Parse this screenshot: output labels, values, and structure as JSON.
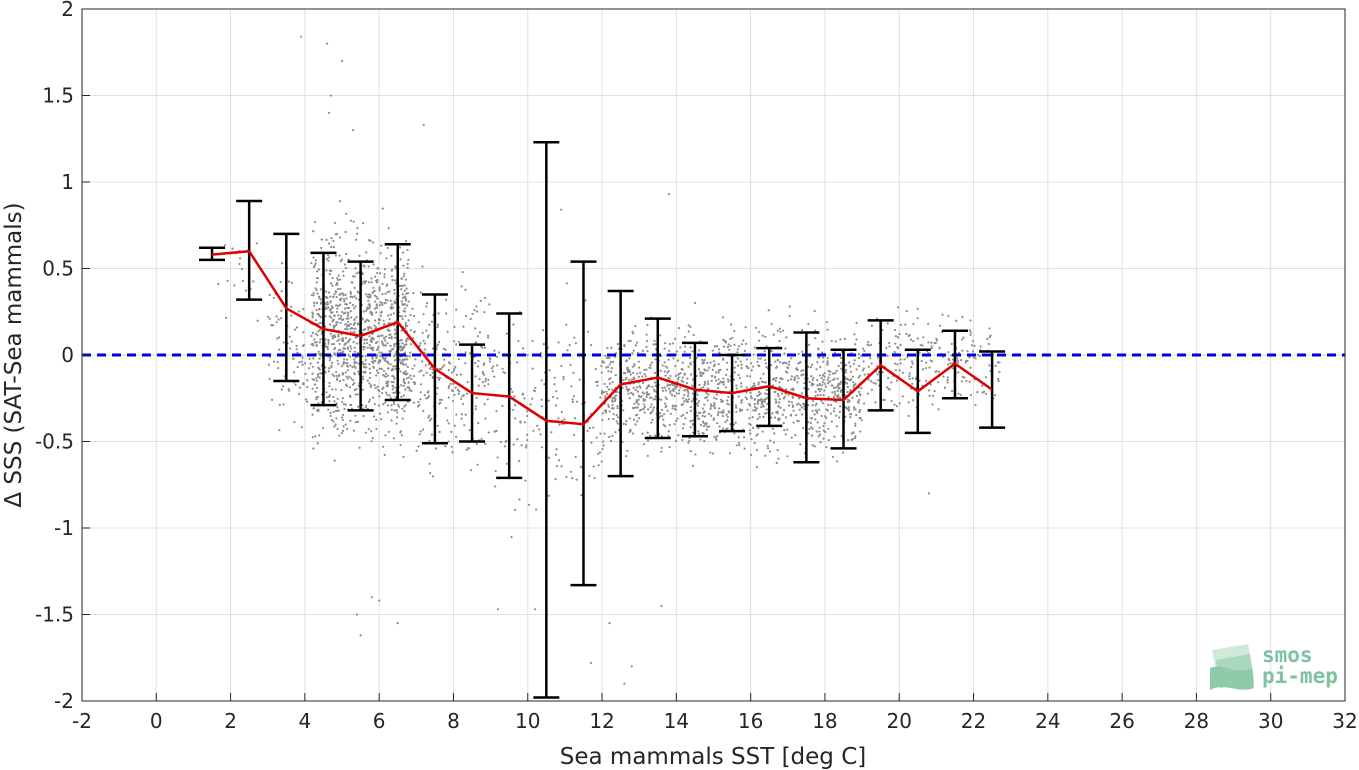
{
  "chart_data": {
    "type": "scatter",
    "xlabel": "Sea mammals SST [deg C]",
    "ylabel": "Δ SSS (SAT-Sea mammals)",
    "xlim": [
      -2,
      32
    ],
    "ylim": [
      -2,
      2
    ],
    "xticks": [
      -2,
      0,
      2,
      4,
      6,
      8,
      10,
      12,
      14,
      16,
      18,
      20,
      22,
      24,
      26,
      28,
      30,
      32
    ],
    "yticks": [
      -2,
      -1.5,
      -1,
      -0.5,
      0,
      0.5,
      1,
      1.5,
      2
    ],
    "xtick_labels": [
      "-2",
      "0",
      "2",
      "4",
      "6",
      "8",
      "10",
      "12",
      "14",
      "16",
      "18",
      "20",
      "22",
      "24",
      "26",
      "28",
      "30",
      "32"
    ],
    "ytick_labels": [
      "-2",
      "-1.5",
      "-1",
      "-0.5",
      "0",
      "0.5",
      "1",
      "1.5",
      "2"
    ],
    "grid": true,
    "reference_line": {
      "y": 0,
      "color": "#0000e0",
      "style": "dashed"
    },
    "mean_series": {
      "color": "#e00000",
      "x": [
        1.5,
        2.5,
        3.5,
        4.5,
        5.5,
        6.5,
        7.5,
        8.5,
        9.5,
        10.5,
        11.5,
        12.5,
        13.5,
        14.5,
        15.5,
        16.5,
        17.5,
        18.5,
        19.5,
        20.5,
        21.5,
        22.5
      ],
      "y": [
        0.58,
        0.6,
        0.27,
        0.15,
        0.11,
        0.19,
        -0.08,
        -0.22,
        -0.24,
        -0.38,
        -0.4,
        -0.17,
        -0.13,
        -0.2,
        -0.22,
        -0.18,
        -0.25,
        -0.26,
        -0.06,
        -0.21,
        -0.05,
        -0.2
      ]
    },
    "error_bars": {
      "color": "#000000",
      "lower": [
        0.55,
        0.32,
        -0.15,
        -0.29,
        -0.32,
        -0.26,
        -0.51,
        -0.5,
        -0.71,
        -1.98,
        -1.33,
        -0.7,
        -0.48,
        -0.47,
        -0.44,
        -0.41,
        -0.62,
        -0.54,
        -0.32,
        -0.45,
        -0.25,
        -0.42
      ],
      "upper": [
        0.62,
        0.89,
        0.7,
        0.59,
        0.54,
        0.64,
        0.35,
        0.06,
        0.24,
        1.23,
        0.54,
        0.37,
        0.21,
        0.07,
        0.0,
        0.04,
        0.13,
        0.03,
        0.2,
        0.03,
        0.14,
        0.02
      ]
    },
    "scatter_color": "#8c8c8c",
    "scatter_clusters": [
      {
        "x_range": [
          1.5,
          3.0
        ],
        "y_center": 0.45,
        "y_spread": 0.25,
        "count": 20
      },
      {
        "x_range": [
          3.0,
          4.2
        ],
        "y_center": 0.05,
        "y_spread": 0.35,
        "count": 90
      },
      {
        "x_range": [
          4.2,
          6.8
        ],
        "y_center": 0.1,
        "y_spread": 0.45,
        "count": 1100
      },
      {
        "x_range": [
          6.8,
          9.0
        ],
        "y_center": -0.1,
        "y_spread": 0.4,
        "count": 260
      },
      {
        "x_range": [
          9.0,
          12.0
        ],
        "y_center": -0.35,
        "y_spread": 0.45,
        "count": 180
      },
      {
        "x_range": [
          12.0,
          19.0
        ],
        "y_center": -0.2,
        "y_spread": 0.28,
        "count": 1300
      },
      {
        "x_range": [
          19.0,
          22.7
        ],
        "y_center": -0.05,
        "y_spread": 0.22,
        "count": 260
      }
    ],
    "scatter_outliers": [
      [
        3.9,
        1.84
      ],
      [
        4.6,
        1.8
      ],
      [
        4.7,
        1.5
      ],
      [
        4.65,
        1.4
      ],
      [
        5.0,
        1.7
      ],
      [
        5.3,
        1.3
      ],
      [
        7.2,
        1.33
      ],
      [
        5.8,
        -1.4
      ],
      [
        6.0,
        -1.42
      ],
      [
        5.4,
        -1.5
      ],
      [
        5.5,
        -1.62
      ],
      [
        6.5,
        -1.55
      ],
      [
        12.2,
        -1.55
      ],
      [
        12.8,
        -1.8
      ],
      [
        12.6,
        -1.9
      ],
      [
        13.6,
        -1.45
      ],
      [
        11.7,
        -1.78
      ],
      [
        9.2,
        -1.47
      ],
      [
        10.2,
        -1.47
      ],
      [
        13.8,
        0.93
      ],
      [
        10.9,
        0.84
      ],
      [
        21.7,
        0.22
      ],
      [
        20.8,
        -0.8
      ]
    ]
  },
  "logo": {
    "line1": "smos",
    "line2": "pi-mep"
  }
}
